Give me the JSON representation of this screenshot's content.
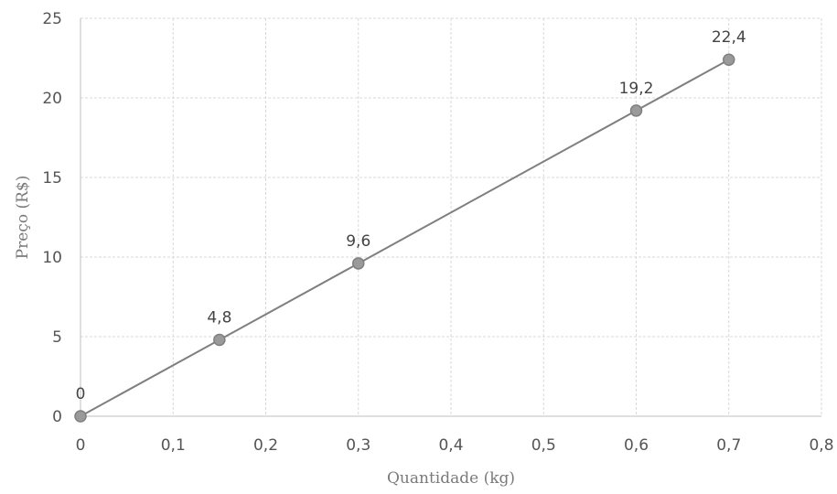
{
  "chart_data": {
    "type": "scatter",
    "title": "",
    "xlabel": "Quantidade (kg)",
    "ylabel": "Preço (R$)",
    "xlim": [
      0,
      0.8
    ],
    "ylim": [
      0,
      25
    ],
    "x_ticks": [
      "0",
      "0,1",
      "0,2",
      "0,3",
      "0,4",
      "0,5",
      "0,6",
      "0,7",
      "0,8"
    ],
    "y_ticks": [
      "0",
      "5",
      "10",
      "15",
      "20",
      "25"
    ],
    "grid": true,
    "legend": "none",
    "series": [
      {
        "x": [
          0,
          0.15,
          0.3,
          0.6,
          0.7
        ],
        "y": [
          0,
          4.8,
          9.6,
          19.2,
          22.4
        ],
        "data_labels": [
          "0",
          "4,8",
          "9,6",
          "19,2",
          "22,4"
        ],
        "color": "#7f7f7f",
        "marker": "circle",
        "line": true
      }
    ]
  }
}
